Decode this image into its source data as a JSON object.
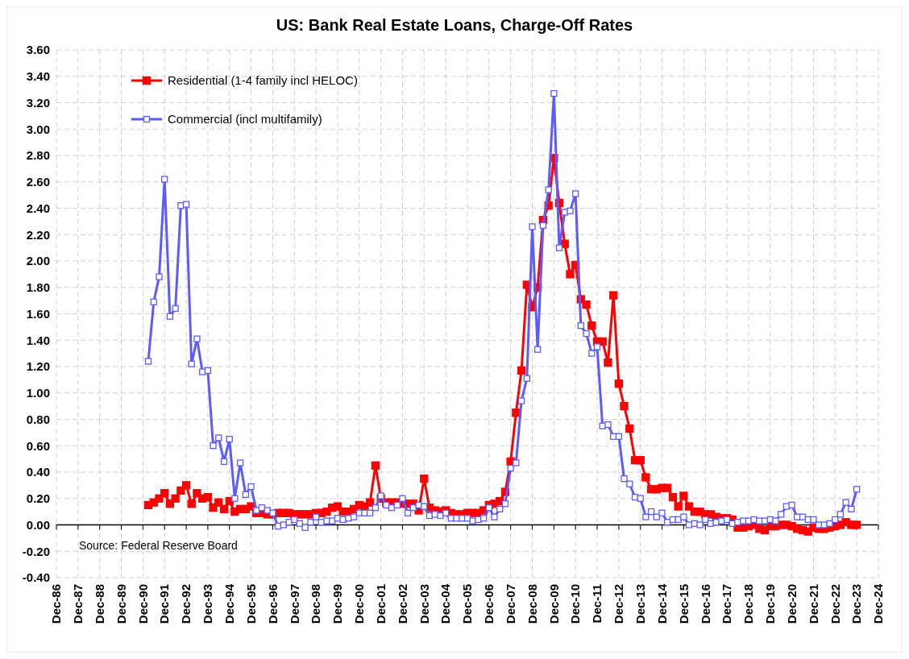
{
  "chart_data": {
    "type": "line",
    "title": "US: Bank Real Estate Loans, Charge-Off Rates",
    "x": [
      "1991-03",
      "1991-06",
      "1991-09",
      "1991-12",
      "1992-03",
      "1992-06",
      "1992-09",
      "1992-12",
      "1993-03",
      "1993-06",
      "1993-09",
      "1993-12",
      "1994-03",
      "1994-06",
      "1994-09",
      "1994-12",
      "1995-03",
      "1995-06",
      "1995-09",
      "1995-12",
      "1996-03",
      "1996-06",
      "1996-09",
      "1996-12",
      "1997-03",
      "1997-06",
      "1997-09",
      "1997-12",
      "1998-03",
      "1998-06",
      "1998-09",
      "1998-12",
      "1999-03",
      "1999-06",
      "1999-09",
      "1999-12",
      "2000-03",
      "2000-06",
      "2000-09",
      "2000-12",
      "2001-03",
      "2001-06",
      "2001-09",
      "2001-12",
      "2002-03",
      "2002-06",
      "2002-09",
      "2002-12",
      "2003-03",
      "2003-06",
      "2003-09",
      "2003-12",
      "2004-03",
      "2004-06",
      "2004-09",
      "2004-12",
      "2005-03",
      "2005-06",
      "2005-09",
      "2005-12",
      "2006-03",
      "2006-06",
      "2006-09",
      "2006-12",
      "2007-03",
      "2007-06",
      "2007-09",
      "2007-12",
      "2008-03",
      "2008-06",
      "2008-09",
      "2008-12",
      "2009-03",
      "2009-06",
      "2009-09",
      "2009-12",
      "2010-03",
      "2010-06",
      "2010-09",
      "2010-12",
      "2011-03",
      "2011-06",
      "2011-09",
      "2011-12",
      "2012-03",
      "2012-06",
      "2012-09",
      "2012-12",
      "2013-03",
      "2013-06",
      "2013-09",
      "2013-12",
      "2014-03",
      "2014-06",
      "2014-09",
      "2014-12",
      "2015-03",
      "2015-06",
      "2015-09",
      "2015-12",
      "2016-03",
      "2016-06",
      "2016-09",
      "2016-12",
      "2017-03",
      "2017-06",
      "2017-09",
      "2017-12",
      "2018-03",
      "2018-06",
      "2018-09",
      "2018-12",
      "2019-03",
      "2019-06",
      "2019-09",
      "2019-12",
      "2020-03",
      "2020-06",
      "2020-09",
      "2020-12",
      "2021-03",
      "2021-06",
      "2021-09",
      "2021-12",
      "2022-03",
      "2022-06",
      "2022-09",
      "2022-12",
      "2023-03",
      "2023-06",
      "2023-09",
      "2023-12"
    ],
    "series": [
      {
        "name": "Residential (1-4 family incl HELOC)",
        "color": "#ff0000",
        "marker": "square",
        "values": [
          0.15,
          0.17,
          0.2,
          0.24,
          0.16,
          0.2,
          0.26,
          0.3,
          0.16,
          0.24,
          0.2,
          0.21,
          0.13,
          0.17,
          0.12,
          0.18,
          0.1,
          0.12,
          0.12,
          0.14,
          0.09,
          0.09,
          0.08,
          0.08,
          0.09,
          0.09,
          0.09,
          0.08,
          0.08,
          0.08,
          0.08,
          0.09,
          0.09,
          0.1,
          0.13,
          0.14,
          0.1,
          0.1,
          0.12,
          0.15,
          0.14,
          0.17,
          0.45,
          0.2,
          0.17,
          0.17,
          0.17,
          0.16,
          0.16,
          0.16,
          0.11,
          0.35,
          0.13,
          0.11,
          0.1,
          0.11,
          0.09,
          0.08,
          0.08,
          0.09,
          0.09,
          0.09,
          0.11,
          0.15,
          0.16,
          0.18,
          0.25,
          0.48,
          0.85,
          1.17,
          1.82,
          1.65,
          1.8,
          2.31,
          2.42,
          2.78,
          2.44,
          2.13,
          1.9,
          1.97,
          1.71,
          1.67,
          1.51,
          1.39,
          1.39,
          1.23,
          1.74,
          1.07,
          0.9,
          0.73,
          0.49,
          0.49,
          0.36,
          0.27,
          0.27,
          0.28,
          0.28,
          0.21,
          0.14,
          0.22,
          0.14,
          0.1,
          0.1,
          0.08,
          0.08,
          0.06,
          0.05,
          0.05,
          0.04,
          -0.02,
          -0.02,
          -0.01,
          0.0,
          -0.03,
          -0.04,
          -0.01,
          -0.01,
          0.0,
          0.0,
          -0.01,
          -0.03,
          -0.04,
          -0.05,
          -0.02,
          -0.03,
          -0.03,
          -0.02,
          -0.01,
          0.0,
          0.02,
          0.0,
          0.0
        ]
      },
      {
        "name": "Commercial (incl multifamily)",
        "color": "#5b5bff",
        "marker": "square",
        "values": [
          1.24,
          1.69,
          1.88,
          2.62,
          1.58,
          1.64,
          2.42,
          2.43,
          1.22,
          1.41,
          1.16,
          1.17,
          0.6,
          0.66,
          0.48,
          0.65,
          0.2,
          0.47,
          0.23,
          0.29,
          0.11,
          0.13,
          0.11,
          0.09,
          -0.01,
          0.0,
          0.02,
          0.04,
          0.01,
          -0.02,
          0.02,
          0.06,
          0.02,
          0.03,
          0.03,
          0.05,
          0.04,
          0.05,
          0.06,
          0.09,
          0.09,
          0.09,
          0.13,
          0.22,
          0.15,
          0.13,
          0.15,
          0.2,
          0.09,
          0.13,
          0.15,
          0.14,
          0.07,
          0.08,
          0.07,
          0.09,
          0.05,
          0.05,
          0.05,
          0.05,
          0.03,
          0.04,
          0.05,
          0.13,
          0.06,
          0.12,
          0.16,
          0.43,
          0.47,
          0.94,
          1.11,
          2.26,
          1.33,
          2.27,
          2.54,
          3.27,
          2.1,
          2.37,
          2.38,
          2.51,
          1.51,
          1.45,
          1.3,
          1.35,
          0.75,
          0.76,
          0.67,
          0.67,
          0.35,
          0.31,
          0.21,
          0.2,
          0.06,
          0.1,
          0.06,
          0.09,
          0.02,
          0.04,
          0.04,
          0.06,
          0.0,
          0.01,
          0.0,
          0.04,
          0.01,
          0.02,
          0.03,
          0.04,
          0.01,
          0.02,
          0.03,
          0.03,
          0.04,
          0.03,
          0.03,
          0.04,
          0.03,
          0.08,
          0.14,
          0.15,
          0.06,
          0.06,
          0.04,
          0.04,
          0.0,
          0.0,
          0.01,
          0.04,
          0.08,
          0.17,
          0.12,
          0.27
        ]
      }
    ],
    "xlim": [
      "1986-12",
      "2024-12"
    ],
    "xticks": [
      {
        "value": "1986-12",
        "label": "Dec-86"
      },
      {
        "value": "1987-12",
        "label": "Dec-87"
      },
      {
        "value": "1988-12",
        "label": "Dec-88"
      },
      {
        "value": "1989-12",
        "label": "Dec-89"
      },
      {
        "value": "1990-12",
        "label": "Dec-90"
      },
      {
        "value": "1991-12",
        "label": "Dec-91"
      },
      {
        "value": "1992-12",
        "label": "Dec-92"
      },
      {
        "value": "1993-12",
        "label": "Dec-93"
      },
      {
        "value": "1994-12",
        "label": "Dec-94"
      },
      {
        "value": "1995-12",
        "label": "Dec-95"
      },
      {
        "value": "1996-12",
        "label": "Dec-96"
      },
      {
        "value": "1997-12",
        "label": "Dec-97"
      },
      {
        "value": "1998-12",
        "label": "Dec-98"
      },
      {
        "value": "1999-12",
        "label": "Dec-99"
      },
      {
        "value": "2000-12",
        "label": "Dec-00"
      },
      {
        "value": "2001-12",
        "label": "Dec-01"
      },
      {
        "value": "2002-12",
        "label": "Dec-02"
      },
      {
        "value": "2003-12",
        "label": "Dec-03"
      },
      {
        "value": "2004-12",
        "label": "Dec-04"
      },
      {
        "value": "2005-12",
        "label": "Dec-05"
      },
      {
        "value": "2006-12",
        "label": "Dec-06"
      },
      {
        "value": "2007-12",
        "label": "Dec-07"
      },
      {
        "value": "2008-12",
        "label": "Dec-08"
      },
      {
        "value": "2009-12",
        "label": "Dec-09"
      },
      {
        "value": "2010-12",
        "label": "Dec-10"
      },
      {
        "value": "2011-12",
        "label": "Dec-11"
      },
      {
        "value": "2012-12",
        "label": "Dec-12"
      },
      {
        "value": "2013-12",
        "label": "Dec-13"
      },
      {
        "value": "2014-12",
        "label": "Dec-14"
      },
      {
        "value": "2015-12",
        "label": "Dec-15"
      },
      {
        "value": "2016-12",
        "label": "Dec-16"
      },
      {
        "value": "2017-12",
        "label": "Dec-17"
      },
      {
        "value": "2018-12",
        "label": "Dec-18"
      },
      {
        "value": "2019-12",
        "label": "Dec-19"
      },
      {
        "value": "2020-12",
        "label": "Dec-20"
      },
      {
        "value": "2021-12",
        "label": "Dec-21"
      },
      {
        "value": "2022-12",
        "label": "Dec-22"
      },
      {
        "value": "2023-12",
        "label": "Dec-23"
      },
      {
        "value": "2024-12",
        "label": "Dec-24"
      }
    ],
    "ylim": [
      -0.4,
      3.6
    ],
    "yticks": [
      {
        "value": -0.4,
        "label": "-0.40"
      },
      {
        "value": -0.2,
        "label": "-0.20"
      },
      {
        "value": 0,
        "label": "0.00"
      },
      {
        "value": 0.2,
        "label": "0.20"
      },
      {
        "value": 0.4,
        "label": "0.40"
      },
      {
        "value": 0.6,
        "label": "0.60"
      },
      {
        "value": 0.8,
        "label": "0.80"
      },
      {
        "value": 1,
        "label": "1.00"
      },
      {
        "value": 1.2,
        "label": "1.20"
      },
      {
        "value": 1.4,
        "label": "1.40"
      },
      {
        "value": 1.6,
        "label": "1.60"
      },
      {
        "value": 1.8,
        "label": "1.80"
      },
      {
        "value": 2,
        "label": "2.00"
      },
      {
        "value": 2.2,
        "label": "2.20"
      },
      {
        "value": 2.4,
        "label": "2.40"
      },
      {
        "value": 2.6,
        "label": "2.60"
      },
      {
        "value": 2.8,
        "label": "2.80"
      },
      {
        "value": 3,
        "label": "3.00"
      },
      {
        "value": 3.2,
        "label": "3.20"
      },
      {
        "value": 3.4,
        "label": "3.40"
      },
      {
        "value": 3.6,
        "label": "3.60"
      }
    ],
    "grid": true,
    "legend": "top left",
    "line_style": "solid",
    "annotations": [
      "Source: Federal Reserve Board"
    ]
  }
}
